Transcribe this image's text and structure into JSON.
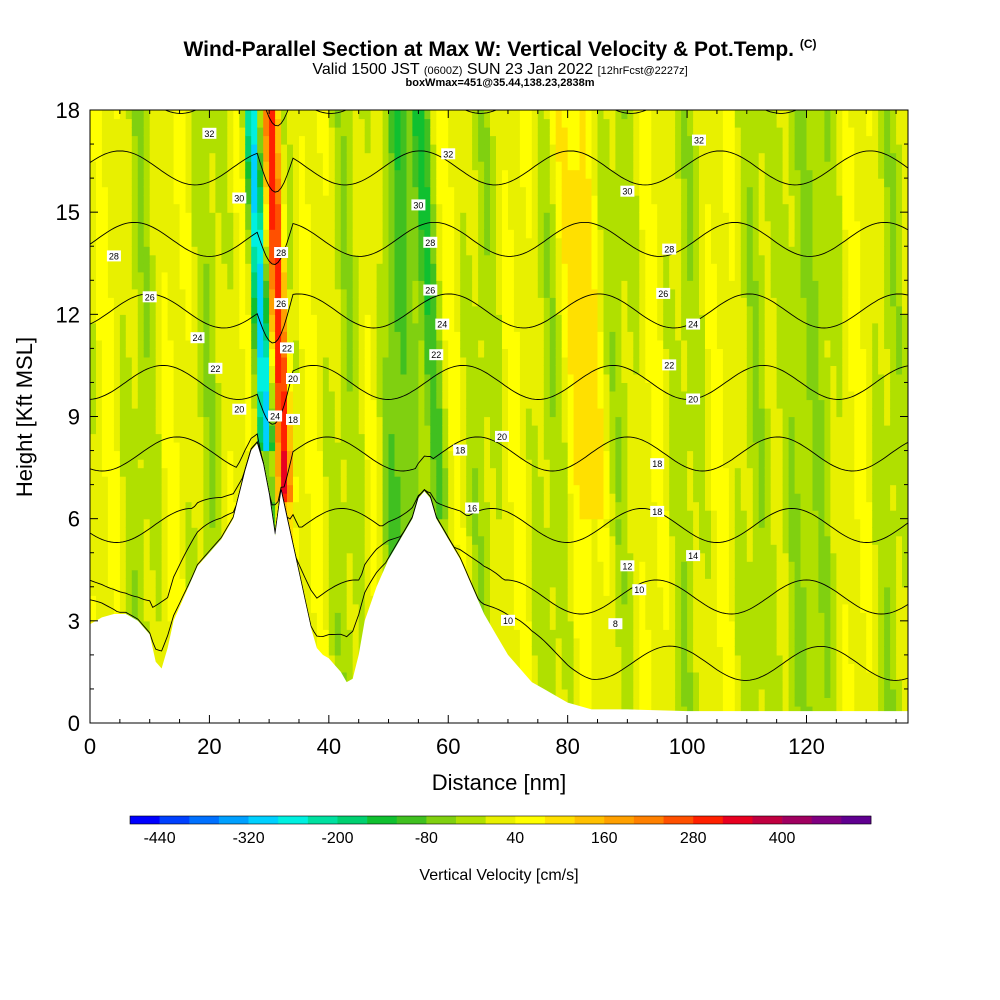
{
  "title": {
    "line1_main": "Wind-Parallel Section at Max W: Vertical Velocity & Pot.Temp.",
    "line1_mark": "(C)",
    "line2_a": "Valid 1500 JST",
    "line2_b": "(0600Z)",
    "line2_c": "SUN 23 Jan 2022",
    "line2_d": "[12hrFcst@2227z]",
    "line3": "boxWmax=451@35.44,138.23,2838m"
  },
  "chart_data": {
    "type": "heatmap",
    "xlabel": "Distance [nm]",
    "ylabel": "Height [Kft MSL]",
    "xlim": [
      0,
      137
    ],
    "ylim": [
      0,
      18
    ],
    "xticks": [
      0,
      20,
      40,
      60,
      80,
      100,
      120
    ],
    "yticks": [
      0,
      3,
      6,
      9,
      12,
      15,
      18
    ],
    "colorbar": {
      "label": "Vertical Velocity [cm/s]",
      "range": [
        -480,
        520
      ],
      "tick_values": [
        -440,
        -320,
        -200,
        -80,
        40,
        160,
        280,
        400
      ],
      "colors": [
        "#0000ff",
        "#0040ff",
        "#0070ff",
        "#00a0ff",
        "#00d0ff",
        "#00f0e0",
        "#00e0a0",
        "#00d070",
        "#10c030",
        "#40c020",
        "#80d010",
        "#b0e000",
        "#e8f000",
        "#ffff00",
        "#ffe000",
        "#ffc000",
        "#ffa000",
        "#ff8000",
        "#ff5000",
        "#ff2000",
        "#e80020",
        "#c00040",
        "#a00060",
        "#800080",
        "#600090"
      ]
    },
    "terrain": {
      "x": [
        0,
        2,
        4,
        6,
        8,
        10,
        11,
        12,
        13,
        14,
        16,
        18,
        20,
        22,
        24,
        26,
        27,
        28,
        29,
        30,
        31,
        32,
        33,
        34,
        35,
        36,
        37,
        38,
        39,
        40,
        41,
        42,
        43,
        44,
        45,
        46,
        48,
        50,
        52,
        54,
        55,
        56,
        57,
        58,
        60,
        62,
        64,
        66,
        68,
        70,
        72,
        74,
        76,
        78,
        80,
        82,
        84,
        86,
        90,
        100,
        110,
        120,
        130,
        137
      ],
      "y": [
        2.9,
        3.1,
        3.2,
        3.2,
        3.0,
        2.6,
        1.8,
        1.6,
        2.2,
        3.0,
        3.8,
        4.6,
        5.0,
        5.4,
        6.0,
        7.4,
        8.0,
        8.2,
        7.6,
        6.7,
        5.5,
        6.8,
        6.0,
        5.2,
        4.4,
        3.6,
        2.8,
        2.2,
        2.0,
        1.9,
        1.7,
        1.5,
        1.2,
        1.3,
        2.0,
        3.0,
        4.0,
        4.8,
        5.4,
        6.0,
        6.6,
        6.8,
        6.6,
        6.0,
        5.4,
        4.8,
        4.0,
        3.2,
        2.6,
        2.0,
        1.6,
        1.2,
        1.0,
        0.8,
        0.6,
        0.5,
        0.4,
        0.4,
        0.4,
        0.35,
        0.35,
        0.35,
        0.35,
        0.35
      ]
    },
    "theta_levels": [
      8,
      10,
      12,
      14,
      16,
      18,
      20,
      22,
      24,
      26,
      28,
      30,
      32
    ],
    "contour_labels": [
      {
        "text": "32",
        "x": 20,
        "y": 17.3
      },
      {
        "text": "32",
        "x": 60,
        "y": 16.7
      },
      {
        "text": "32",
        "x": 102,
        "y": 17.1
      },
      {
        "text": "30",
        "x": 25,
        "y": 15.4
      },
      {
        "text": "30",
        "x": 55,
        "y": 15.2
      },
      {
        "text": "30",
        "x": 90,
        "y": 15.6
      },
      {
        "text": "28",
        "x": 4,
        "y": 13.7
      },
      {
        "text": "28",
        "x": 57,
        "y": 14.1
      },
      {
        "text": "28",
        "x": 97,
        "y": 13.9
      },
      {
        "text": "26",
        "x": 10,
        "y": 12.5
      },
      {
        "text": "26",
        "x": 57,
        "y": 12.7
      },
      {
        "text": "26",
        "x": 96,
        "y": 12.6
      },
      {
        "text": "24",
        "x": 18,
        "y": 11.3
      },
      {
        "text": "24",
        "x": 59,
        "y": 11.7
      },
      {
        "text": "24",
        "x": 101,
        "y": 11.7
      },
      {
        "text": "22",
        "x": 21,
        "y": 10.4
      },
      {
        "text": "22",
        "x": 58,
        "y": 10.8
      },
      {
        "text": "22",
        "x": 97,
        "y": 10.5
      },
      {
        "text": "20",
        "x": 25,
        "y": 9.2
      },
      {
        "text": "20",
        "x": 69,
        "y": 8.4
      },
      {
        "text": "20",
        "x": 101,
        "y": 9.5
      },
      {
        "text": "18",
        "x": 62,
        "y": 8.0
      },
      {
        "text": "18",
        "x": 95,
        "y": 7.6
      },
      {
        "text": "18",
        "x": 95,
        "y": 6.2
      },
      {
        "text": "16",
        "x": 64,
        "y": 6.3
      },
      {
        "text": "14",
        "x": 101,
        "y": 4.9
      },
      {
        "text": "12",
        "x": 90,
        "y": 4.6
      },
      {
        "text": "10",
        "x": 92,
        "y": 3.9
      },
      {
        "text": "10",
        "x": 70,
        "y": 3.0
      },
      {
        "text": "8",
        "x": 88,
        "y": 2.9
      },
      {
        "text": "28",
        "x": 32,
        "y": 13.8
      },
      {
        "text": "26",
        "x": 32,
        "y": 12.3
      },
      {
        "text": "22",
        "x": 33,
        "y": 11.0
      },
      {
        "text": "20",
        "x": 34,
        "y": 10.1
      },
      {
        "text": "18",
        "x": 34,
        "y": 8.9
      },
      {
        "text": "24",
        "x": 31,
        "y": 9.0
      }
    ]
  }
}
